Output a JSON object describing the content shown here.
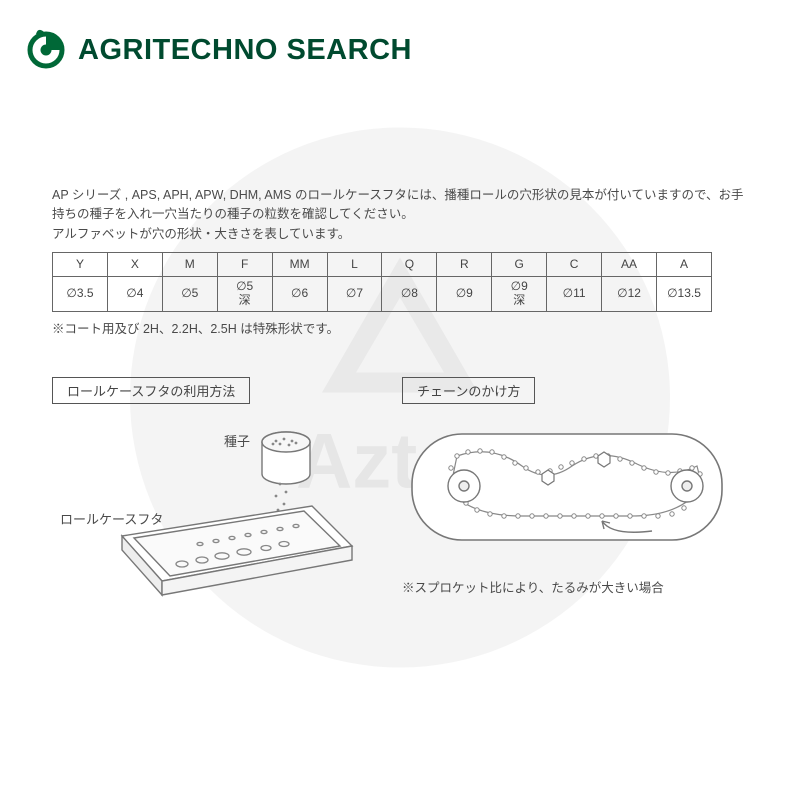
{
  "brand": "AGRITECHNO SEARCH",
  "logo_color": "#006837",
  "intro_text": "AP シリーズ , APS, APH, APW, DHM, AMS のロールケースフタには、播種ロールの穴形状の見本が付いていますので、お手持ちの種子を入れ一穴当たりの種子の粒数を確認してください。\nアルファベットが穴の形状・大きさを表しています。",
  "table": {
    "headers": [
      "Y",
      "X",
      "M",
      "F",
      "MM",
      "L",
      "Q",
      "R",
      "G",
      "C",
      "AA",
      "A"
    ],
    "values": [
      "∅3.5",
      "∅4",
      "∅5",
      "∅5\n深",
      "∅6",
      "∅7",
      "∅8",
      "∅9",
      "∅9\n深",
      "∅11",
      "∅12",
      "∅13.5"
    ]
  },
  "footnote": "※コート用及び 2H、2.2H、2.5H は特殊形状です。",
  "left_diagram": {
    "title": "ロールケースフタの利用方法",
    "seed_label": "種子",
    "lid_label": "ロールケースフタ"
  },
  "right_diagram": {
    "title": "チェーンのかけ方",
    "note": "※スプロケット比により、たるみが大きい場合"
  },
  "watermark_text": "Aztec",
  "colors": {
    "text": "#4a4a4a",
    "border": "#666666",
    "watermark": "#f0f0f0"
  }
}
